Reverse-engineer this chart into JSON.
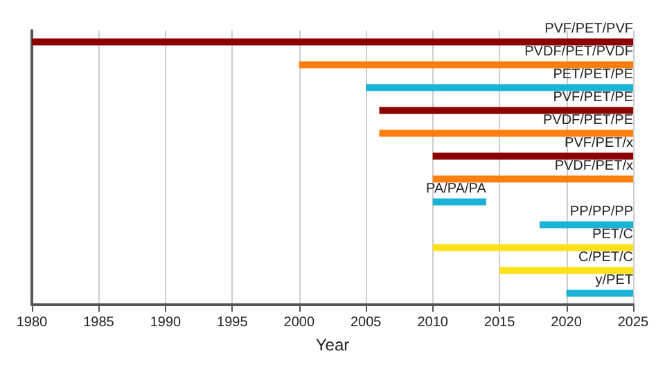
{
  "chart_data": {
    "type": "bar",
    "orientation": "horizontal",
    "xlabel": "Year",
    "categories": [
      "PVF/PET/PVF",
      "PVDF/PET/PVDF",
      "PET/PET/PE",
      "PVF/PET/PE",
      "PVDF/PET/PE",
      "PVF/PET/x",
      "PVDF/PET/x",
      "PA/PA/PA",
      "PP/PP/PP",
      "PET/C",
      "C/PET/C",
      "y/PET"
    ],
    "base": [
      1980,
      2000,
      2005,
      2006,
      2006,
      2010,
      2010,
      2010,
      2018,
      2010,
      2015,
      2020
    ],
    "values": [
      45,
      25,
      20,
      19,
      19,
      15,
      15,
      4,
      7,
      15,
      10,
      5
    ],
    "colors": [
      "#8b0000",
      "#ff7f0e",
      "#1ab3d6",
      "#8b0000",
      "#ff7f0e",
      "#8b0000",
      "#ff7f0e",
      "#1ab3d6",
      "#1ab3d6",
      "#ffe01a",
      "#ffe01a",
      "#1ab3d6"
    ],
    "xlim": [
      1980,
      2025
    ],
    "xticks": [
      1980,
      1985,
      1990,
      1995,
      2000,
      2005,
      2010,
      2015,
      2020,
      2025
    ],
    "grid": "x",
    "tick_labels": "x"
  }
}
